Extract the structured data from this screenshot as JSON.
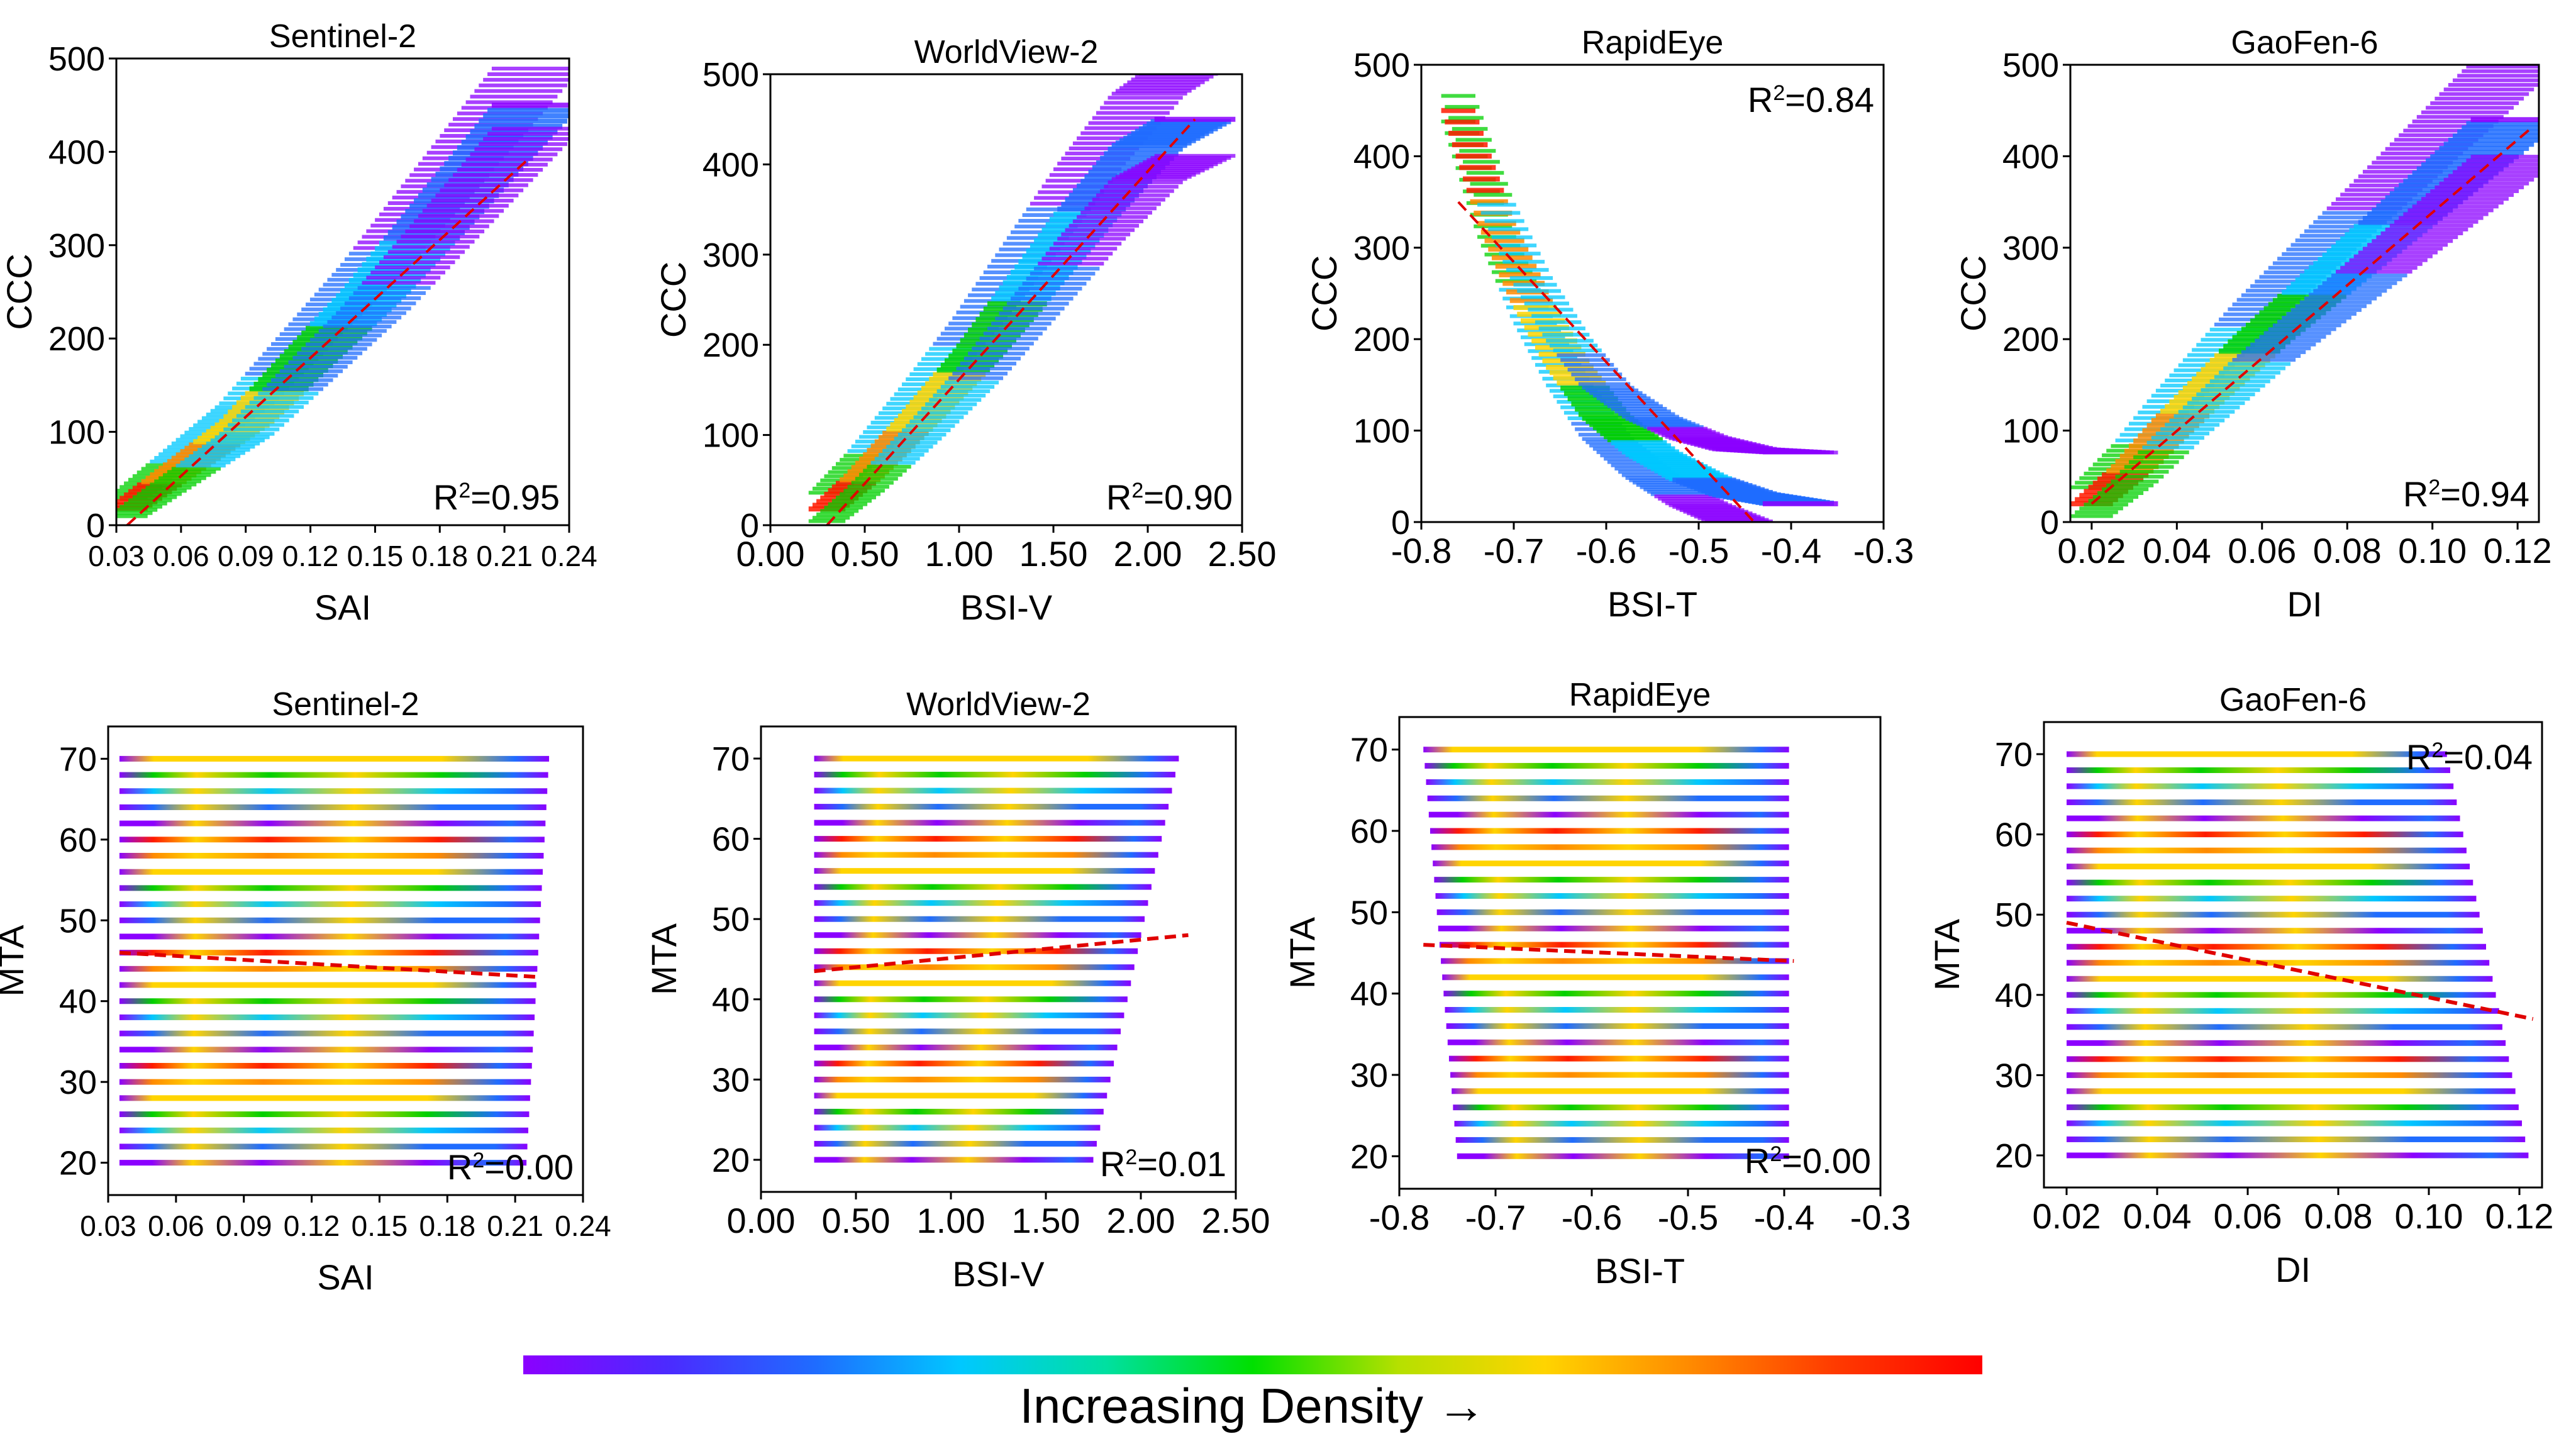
{
  "colorbar": {
    "label": "Increasing Density →",
    "colors": [
      "#8b00ff",
      "#4b2bff",
      "#1f6cff",
      "#00c8ff",
      "#00e0a0",
      "#00e000",
      "#b6e000",
      "#ffd400",
      "#ff8a00",
      "#ff3a00",
      "#ff0000"
    ]
  },
  "palette": {
    "violet": "#8b00ff",
    "blue": "#1f6cff",
    "cyan": "#00c8ff",
    "green": "#00d000",
    "yellow": "#ffd400",
    "orange": "#ff8a00",
    "red": "#ff1a00",
    "fit_line": "#e00000"
  },
  "chart_data": [
    {
      "type": "scatter",
      "title": "Sentinel-2",
      "xlabel": "SAI",
      "ylabel": "CCC",
      "xlim": [
        0.03,
        0.24
      ],
      "ylim": [
        0,
        500
      ],
      "xticks": [
        0.03,
        0.06,
        0.09,
        0.12,
        0.15,
        0.18,
        0.21,
        0.24
      ],
      "xtick_labels": [
        "0.03",
        "0.06",
        "0.09",
        "0.12",
        "0.15",
        "0.18",
        "0.21",
        "0.24"
      ],
      "yticks": [
        0,
        100,
        200,
        300,
        400,
        500
      ],
      "ytick_labels": [
        "0",
        "100",
        "200",
        "300",
        "400",
        "500"
      ],
      "r2_label": "R",
      "r2_text": "=0.95",
      "r2_position": "bottom-right",
      "pattern": "curve",
      "curve": [
        [
          0.035,
          18
        ],
        [
          0.06,
          60
        ],
        [
          0.09,
          110
        ],
        [
          0.12,
          180
        ],
        [
          0.15,
          250
        ],
        [
          0.18,
          330
        ],
        [
          0.21,
          410
        ],
        [
          0.225,
          450
        ]
      ],
      "spread": 28,
      "fit_line": [
        [
          0.035,
          0
        ],
        [
          0.22,
          390
        ]
      ]
    },
    {
      "type": "scatter",
      "title": "WorldView-2",
      "xlabel": "BSI-V",
      "ylabel": "CCC",
      "xlim": [
        0,
        2.5
      ],
      "ylim": [
        0,
        500
      ],
      "xticks": [
        0,
        0.5,
        1,
        1.5,
        2,
        2.5
      ],
      "xtick_labels": [
        "0.00",
        "0.50",
        "1.00",
        "1.50",
        "2.00",
        "2.50"
      ],
      "yticks": [
        0,
        100,
        200,
        300,
        400,
        500
      ],
      "ytick_labels": [
        "0",
        "100",
        "200",
        "300",
        "400",
        "500"
      ],
      "r2_label": "R",
      "r2_text": "=0.90",
      "r2_position": "bottom-right",
      "pattern": "curve",
      "curve": [
        [
          0.3,
          18
        ],
        [
          0.5,
          55
        ],
        [
          0.8,
          120
        ],
        [
          1.1,
          190
        ],
        [
          1.4,
          270
        ],
        [
          1.7,
          350
        ],
        [
          2.0,
          420
        ],
        [
          2.25,
          450
        ]
      ],
      "spread": 45,
      "fit_line": [
        [
          0.3,
          0
        ],
        [
          2.25,
          450
        ]
      ]
    },
    {
      "type": "scatter",
      "title": "RapidEye",
      "xlabel": "BSI-T",
      "ylabel": "CCC",
      "xlim": [
        -0.8,
        -0.3
      ],
      "ylim": [
        0,
        500
      ],
      "xticks": [
        -0.8,
        -0.7,
        -0.6,
        -0.5,
        -0.4,
        -0.3
      ],
      "xtick_labels": [
        "-0.8",
        "-0.7",
        "-0.6",
        "-0.5",
        "-0.4",
        "-0.3"
      ],
      "yticks": [
        0,
        100,
        200,
        300,
        400,
        500
      ],
      "ytick_labels": [
        "0",
        "100",
        "200",
        "300",
        "400",
        "500"
      ],
      "r2_label": "R",
      "r2_text": "=0.84",
      "r2_position": "top-right",
      "pattern": "curve",
      "curve": [
        [
          -0.76,
          450
        ],
        [
          -0.72,
          330
        ],
        [
          -0.68,
          240
        ],
        [
          -0.64,
          170
        ],
        [
          -0.6,
          115
        ],
        [
          -0.55,
          75
        ],
        [
          -0.5,
          48
        ],
        [
          -0.45,
          30
        ],
        [
          -0.39,
          20
        ]
      ],
      "spread": 40,
      "fit_line": [
        [
          -0.76,
          350
        ],
        [
          -0.44,
          0
        ]
      ]
    },
    {
      "type": "scatter",
      "title": "GaoFen-6",
      "xlabel": "DI",
      "ylabel": "CCC",
      "xlim": [
        0.015,
        0.125
      ],
      "ylim": [
        0,
        500
      ],
      "xticks": [
        0.02,
        0.04,
        0.06,
        0.08,
        0.1,
        0.12
      ],
      "xtick_labels": [
        "0.02",
        "0.04",
        "0.06",
        "0.08",
        "0.10",
        "0.12"
      ],
      "yticks": [
        0,
        100,
        200,
        300,
        400,
        500
      ],
      "ytick_labels": [
        "0",
        "100",
        "200",
        "300",
        "400",
        "500"
      ],
      "r2_label": "R",
      "r2_text": "=0.94",
      "r2_position": "bottom-right",
      "pattern": "curve",
      "curve": [
        [
          0.02,
          20
        ],
        [
          0.03,
          60
        ],
        [
          0.04,
          110
        ],
        [
          0.06,
          200
        ],
        [
          0.08,
          280
        ],
        [
          0.1,
          360
        ],
        [
          0.12,
          440
        ]
      ],
      "spread": 45,
      "fit_line": [
        [
          0.02,
          20
        ],
        [
          0.123,
          430
        ]
      ]
    },
    {
      "type": "scatter",
      "title": "Sentinel-2",
      "xlabel": "SAI",
      "ylabel": "MTA",
      "xlim": [
        0.03,
        0.24
      ],
      "ylim": [
        16,
        74
      ],
      "xticks": [
        0.03,
        0.06,
        0.09,
        0.12,
        0.15,
        0.18,
        0.21,
        0.24
      ],
      "xtick_labels": [
        "0.03",
        "0.06",
        "0.09",
        "0.12",
        "0.15",
        "0.18",
        "0.21",
        "0.24"
      ],
      "yticks": [
        20,
        30,
        40,
        50,
        60,
        70
      ],
      "ytick_labels": [
        "20",
        "30",
        "40",
        "50",
        "60",
        "70"
      ],
      "r2_label": "R",
      "r2_text": "=0.00",
      "r2_position": "bottom-right",
      "pattern": "stripes",
      "stripes": {
        "y_min": 20,
        "y_max": 70,
        "step": 2,
        "x_start": 0.035,
        "x_end_top": 0.225,
        "x_end_bottom": 0.215
      },
      "fit_line": [
        [
          0.035,
          46
        ],
        [
          0.22,
          43
        ]
      ]
    },
    {
      "type": "scatter",
      "title": "WorldView-2",
      "xlabel": "BSI-V",
      "ylabel": "MTA",
      "xlim": [
        0,
        2.5
      ],
      "ylim": [
        16,
        74
      ],
      "xticks": [
        0,
        0.5,
        1,
        1.5,
        2,
        2.5
      ],
      "xtick_labels": [
        "0.00",
        "0.50",
        "1.00",
        "1.50",
        "2.00",
        "2.50"
      ],
      "yticks": [
        20,
        30,
        40,
        50,
        60,
        70
      ],
      "ytick_labels": [
        "20",
        "30",
        "40",
        "50",
        "60",
        "70"
      ],
      "r2_label": "R",
      "r2_text": "=0.01",
      "r2_position": "bottom-right",
      "pattern": "stripes",
      "stripes": {
        "y_min": 20,
        "y_max": 70,
        "step": 2,
        "x_start": 0.28,
        "x_end_top": 2.2,
        "x_end_bottom": 1.75
      },
      "fit_line": [
        [
          0.28,
          43.5
        ],
        [
          2.25,
          48
        ]
      ]
    },
    {
      "type": "scatter",
      "title": "RapidEye",
      "xlabel": "BSI-T",
      "ylabel": "MTA",
      "xlim": [
        -0.8,
        -0.3
      ],
      "ylim": [
        16,
        74
      ],
      "xticks": [
        -0.8,
        -0.7,
        -0.6,
        -0.5,
        -0.4,
        -0.3
      ],
      "xtick_labels": [
        "-0.8",
        "-0.7",
        "-0.6",
        "-0.5",
        "-0.4",
        "-0.3"
      ],
      "yticks": [
        20,
        30,
        40,
        50,
        60,
        70
      ],
      "ytick_labels": [
        "20",
        "30",
        "40",
        "50",
        "60",
        "70"
      ],
      "r2_label": "R",
      "r2_text": "=0.00",
      "r2_position": "bottom-right",
      "pattern": "stripes",
      "stripes": {
        "y_min": 20,
        "y_max": 70,
        "step": 2,
        "x_start_top": -0.775,
        "x_start_bottom": -0.74,
        "x_end": -0.395
      },
      "fit_line": [
        [
          -0.775,
          46
        ],
        [
          -0.39,
          44
        ]
      ]
    },
    {
      "type": "scatter",
      "title": "GaoFen-6",
      "xlabel": "DI",
      "ylabel": "MTA",
      "xlim": [
        0.015,
        0.125
      ],
      "ylim": [
        16,
        74
      ],
      "xticks": [
        0.02,
        0.04,
        0.06,
        0.08,
        0.1,
        0.12
      ],
      "xtick_labels": [
        "0.02",
        "0.04",
        "0.06",
        "0.08",
        "0.10",
        "0.12"
      ],
      "yticks": [
        20,
        30,
        40,
        50,
        60,
        70
      ],
      "ytick_labels": [
        "20",
        "30",
        "40",
        "50",
        "60",
        "70"
      ],
      "r2_label": "R",
      "r2_text": "=0.04",
      "r2_position": "top-right",
      "pattern": "stripes",
      "stripes": {
        "y_min": 20,
        "y_max": 70,
        "step": 2,
        "x_start": 0.02,
        "x_end_top": 0.104,
        "x_end_bottom": 0.122
      },
      "fit_line": [
        [
          0.02,
          49
        ],
        [
          0.123,
          37
        ]
      ]
    }
  ]
}
